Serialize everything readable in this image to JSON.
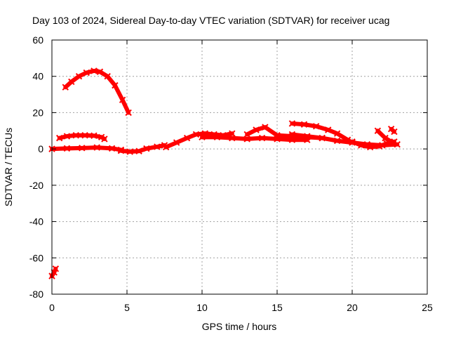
{
  "chart_data": {
    "type": "scatter",
    "title": "Day 103 of 2024, Sidereal Day-to-day VTEC variation (SDTVAR) for receiver ucag",
    "xlabel": "GPS time / hours",
    "ylabel": "SDTVAR / TECUs",
    "xlim": [
      0,
      25
    ],
    "ylim": [
      -80,
      60
    ],
    "xticks": [
      0,
      5,
      10,
      15,
      20,
      25
    ],
    "yticks": [
      -80,
      -60,
      -40,
      -20,
      0,
      20,
      40,
      60
    ],
    "grid": true,
    "legend": "none",
    "series_color": "#ff0000",
    "series": [
      {
        "name": "arc-high",
        "points": [
          [
            0.9,
            34
          ],
          [
            1.3,
            37
          ],
          [
            1.8,
            40
          ],
          [
            2.3,
            42
          ],
          [
            2.8,
            43
          ],
          [
            3.2,
            42.5
          ],
          [
            3.7,
            40
          ],
          [
            4.2,
            35
          ],
          [
            4.7,
            27
          ],
          [
            5.1,
            20
          ]
        ]
      },
      {
        "name": "arc-plus7",
        "points": [
          [
            0.5,
            6
          ],
          [
            1.0,
            7
          ],
          [
            1.6,
            7.5
          ],
          [
            2.2,
            7.5
          ],
          [
            2.8,
            7.3
          ],
          [
            3.3,
            6.5
          ],
          [
            3.5,
            5.5
          ]
        ]
      },
      {
        "name": "arc-baseline-1",
        "points": [
          [
            0.0,
            0
          ],
          [
            1.0,
            0.3
          ],
          [
            2.0,
            0.5
          ],
          [
            3.0,
            0.8
          ],
          [
            4.0,
            0.3
          ],
          [
            4.6,
            -0.5
          ]
        ]
      },
      {
        "name": "arc-baseline-2",
        "points": [
          [
            4.6,
            -1
          ],
          [
            5.2,
            -1.5
          ],
          [
            5.8,
            -1.2
          ],
          [
            6.3,
            0.2
          ],
          [
            7.0,
            1.2
          ],
          [
            7.5,
            2
          ]
        ]
      },
      {
        "name": "arc-mid-1",
        "points": [
          [
            7.6,
            1
          ],
          [
            8.3,
            3.5
          ],
          [
            9.0,
            6
          ],
          [
            9.6,
            8
          ],
          [
            10.2,
            8.5
          ],
          [
            10.8,
            8
          ],
          [
            11.4,
            7.5
          ],
          [
            12.0,
            8.5
          ]
        ]
      },
      {
        "name": "arc-mid-2",
        "points": [
          [
            10.0,
            6.5
          ],
          [
            11.0,
            6.5
          ],
          [
            12.0,
            6
          ],
          [
            13.0,
            5.5
          ],
          [
            14.0,
            6
          ],
          [
            15.0,
            5.5
          ],
          [
            16.0,
            5
          ],
          [
            17.0,
            5
          ]
        ]
      },
      {
        "name": "arc-mid-3",
        "points": [
          [
            13.0,
            8
          ],
          [
            13.6,
            10.5
          ],
          [
            14.2,
            12
          ],
          [
            15.0,
            7.5
          ],
          [
            16.0,
            7
          ],
          [
            17.0,
            6.5
          ],
          [
            18.0,
            6
          ]
        ]
      },
      {
        "name": "arc-upper",
        "points": [
          [
            16.0,
            14
          ],
          [
            16.8,
            13.5
          ],
          [
            17.6,
            12.5
          ],
          [
            18.4,
            10.5
          ],
          [
            19.0,
            8.5
          ],
          [
            19.7,
            5
          ]
        ]
      },
      {
        "name": "arc-late-1",
        "points": [
          [
            16.0,
            8
          ],
          [
            17.0,
            7
          ],
          [
            18.0,
            6
          ],
          [
            19.0,
            4.5
          ],
          [
            20.0,
            3.5
          ],
          [
            21.0,
            2.5
          ],
          [
            22.0,
            2
          ],
          [
            23.0,
            2.5
          ]
        ]
      },
      {
        "name": "arc-late-2",
        "points": [
          [
            20.0,
            4
          ],
          [
            20.6,
            2
          ],
          [
            21.2,
            1
          ],
          [
            21.8,
            1.5
          ],
          [
            22.3,
            3
          ],
          [
            22.8,
            4
          ]
        ]
      },
      {
        "name": "arc-late-3",
        "points": [
          [
            21.7,
            10
          ],
          [
            22.2,
            6
          ],
          [
            22.7,
            3.5
          ]
        ]
      },
      {
        "name": "arc-end",
        "points": [
          [
            22.6,
            11
          ],
          [
            22.8,
            9.5
          ]
        ]
      },
      {
        "name": "arc-low",
        "points": [
          [
            0.0,
            -70
          ],
          [
            0.15,
            -68
          ],
          [
            0.25,
            -66
          ]
        ]
      }
    ]
  }
}
